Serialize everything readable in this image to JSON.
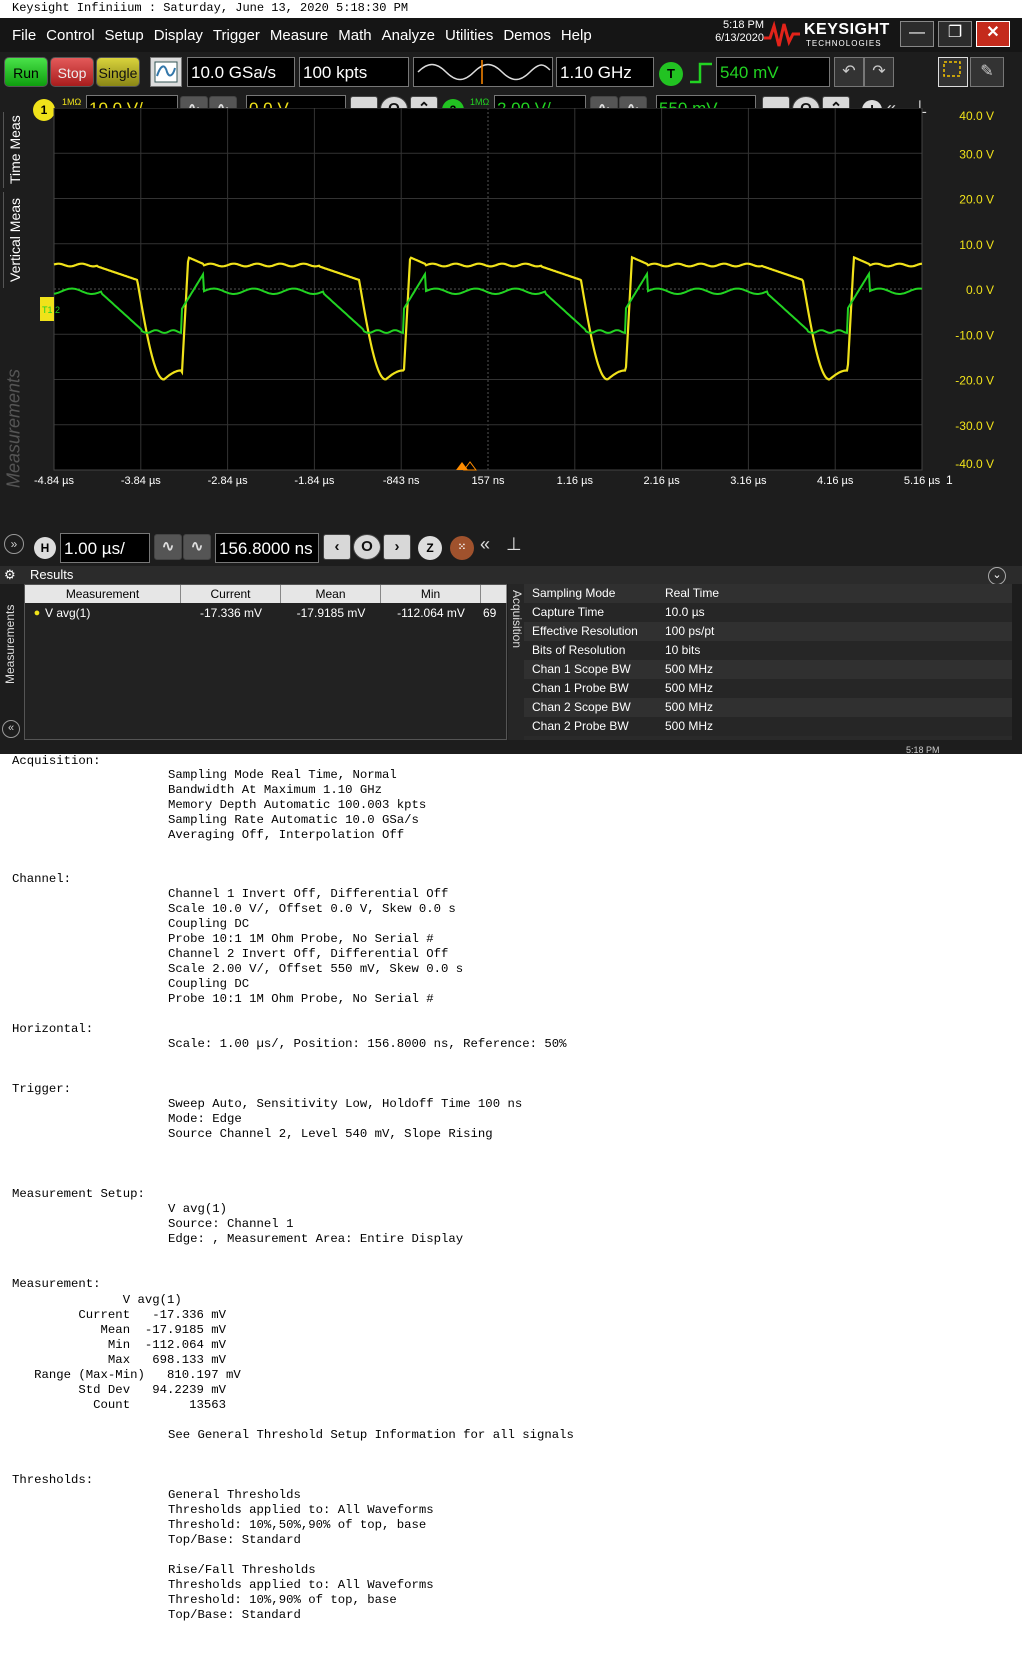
{
  "print_header": "Keysight Infiniium : Saturday, June 13, 2020 5:18:30 PM",
  "menu": [
    "File",
    "Control",
    "Setup",
    "Display",
    "Trigger",
    "Measure",
    "Math",
    "Analyze",
    "Utilities",
    "Demos",
    "Help"
  ],
  "clock": {
    "time": "5:18 PM",
    "date": "6/13/2020"
  },
  "brand": {
    "name": "KEYSIGHT",
    "sub": "TECHNOLOGIES"
  },
  "window_buttons": {
    "minimize": "—",
    "restore": "❐",
    "close": "✕"
  },
  "toolbar": {
    "run": "Run",
    "stop": "Stop",
    "single": "Single",
    "sample_rate": "10.0 GSa/s",
    "memory_depth": "100 kpts",
    "bandwidth": "1.10 GHz",
    "trigger_badge": "T",
    "trigger_level": "540 mV"
  },
  "channels": [
    {
      "num": "1",
      "impedance": "1MΩ",
      "coupling": "DC",
      "scale": "10.0 V/",
      "offset": "0.0 V",
      "color": "#f0e21a"
    },
    {
      "num": "2",
      "impedance": "1MΩ",
      "coupling": "DC",
      "scale": "2.00 V/",
      "offset": "550 mV",
      "color": "#22d322"
    }
  ],
  "side_tabs": {
    "time_meas": "Time Meas",
    "vertical_meas": "Vertical Meas",
    "measurements": "Measurements"
  },
  "plot": {
    "y_ticks": [
      "40.0 V",
      "30.0 V",
      "20.0 V",
      "10.0 V",
      "0.0 V",
      "-10.0 V",
      "-20.0 V",
      "-30.0 V",
      "-40.0 V"
    ],
    "x_ticks": [
      "-4.84 µs",
      "-3.84 µs",
      "-2.84 µs",
      "-1.84 µs",
      "-843 ns",
      "157 ns",
      "1.16 µs",
      "2.16 µs",
      "3.16 µs",
      "4.16 µs",
      "5.16 µs"
    ],
    "marker": "T1 2",
    "right_edge": "1"
  },
  "horizontal": {
    "badge": "H",
    "scale": "1.00 µs/",
    "position": "156.8000 ns",
    "zoom": "Z"
  },
  "results": {
    "title": "Results",
    "side": "Measurements",
    "headers": [
      "Measurement",
      "Current",
      "Mean",
      "Min"
    ],
    "row": {
      "name": "V avg(1)",
      "current": "-17.336 mV",
      "mean": "-17.9185 mV",
      "min": "-112.064 mV",
      "cut": "69"
    },
    "acq_label": "Acquisition",
    "acq_rows": [
      [
        "Sampling Mode",
        "Real Time"
      ],
      [
        "Capture Time",
        "10.0 µs"
      ],
      [
        "Effective Resolution",
        "100 ps/pt"
      ],
      [
        "Bits of Resolution",
        "10 bits"
      ],
      [
        "Chan 1 Scope BW",
        "500 MHz"
      ],
      [
        "Chan 1 Probe BW",
        "500 MHz"
      ],
      [
        "Chan 2 Scope BW",
        "500 MHz"
      ],
      [
        "Chan 2 Probe BW",
        "500 MHz"
      ]
    ],
    "corner_time": "5:18 PM"
  },
  "report": {
    "acquisition_title": "Acquisition:",
    "acquisition": [
      "Sampling Mode Real Time, Normal",
      "Bandwidth At Maximum 1.10 GHz",
      "Memory Depth Automatic 100.003 kpts",
      "Sampling Rate Automatic 10.0 GSa/s",
      "Averaging Off, Interpolation Off"
    ],
    "channel_title": "Channel:",
    "channel": [
      "Channel 1 Invert Off, Differential Off",
      "Scale 10.0 V/, Offset 0.0 V, Skew 0.0 s",
      "Coupling DC",
      "Probe 10:1 1M Ohm Probe, No Serial #",
      "Channel 2 Invert Off, Differential Off",
      "Scale 2.00 V/, Offset 550 mV, Skew 0.0 s",
      "Coupling DC",
      "Probe 10:1 1M Ohm Probe, No Serial #"
    ],
    "horizontal_title": "Horizontal:",
    "horizontal": [
      "Scale: 1.00 µs/, Position: 156.8000 ns, Reference: 50%"
    ],
    "trigger_title": "Trigger:",
    "trigger": [
      "Sweep Auto, Sensitivity Low, Holdoff Time 100 ns",
      "Mode: Edge",
      "Source Channel 2, Level 540 mV, Slope Rising"
    ],
    "msetup_title": "Measurement Setup:",
    "msetup": [
      "V avg(1)",
      "Source: Channel 1",
      "Edge: , Measurement Area: Entire Display"
    ],
    "measurement_title": "Measurement:",
    "measurement_lines": [
      "               V avg(1)",
      "         Current   -17.336 mV",
      "            Mean  -17.9185 mV",
      "             Min  -112.064 mV",
      "             Max   698.133 mV",
      "   Range (Max-Min)   810.197 mV",
      "         Std Dev   94.2239 mV",
      "           Count        13563"
    ],
    "see_general": "See General Threshold Setup Information for all signals",
    "thresholds_title": "Thresholds:",
    "thresholds": [
      "General Thresholds",
      "Thresholds applied to: All Waveforms",
      "Threshold: 10%,50%,90% of top, base",
      "Top/Base: Standard",
      "",
      "Rise/Fall Thresholds",
      "Thresholds applied to: All Waveforms",
      "Threshold: 10%,90% of top, base",
      "Top/Base: Standard"
    ]
  }
}
